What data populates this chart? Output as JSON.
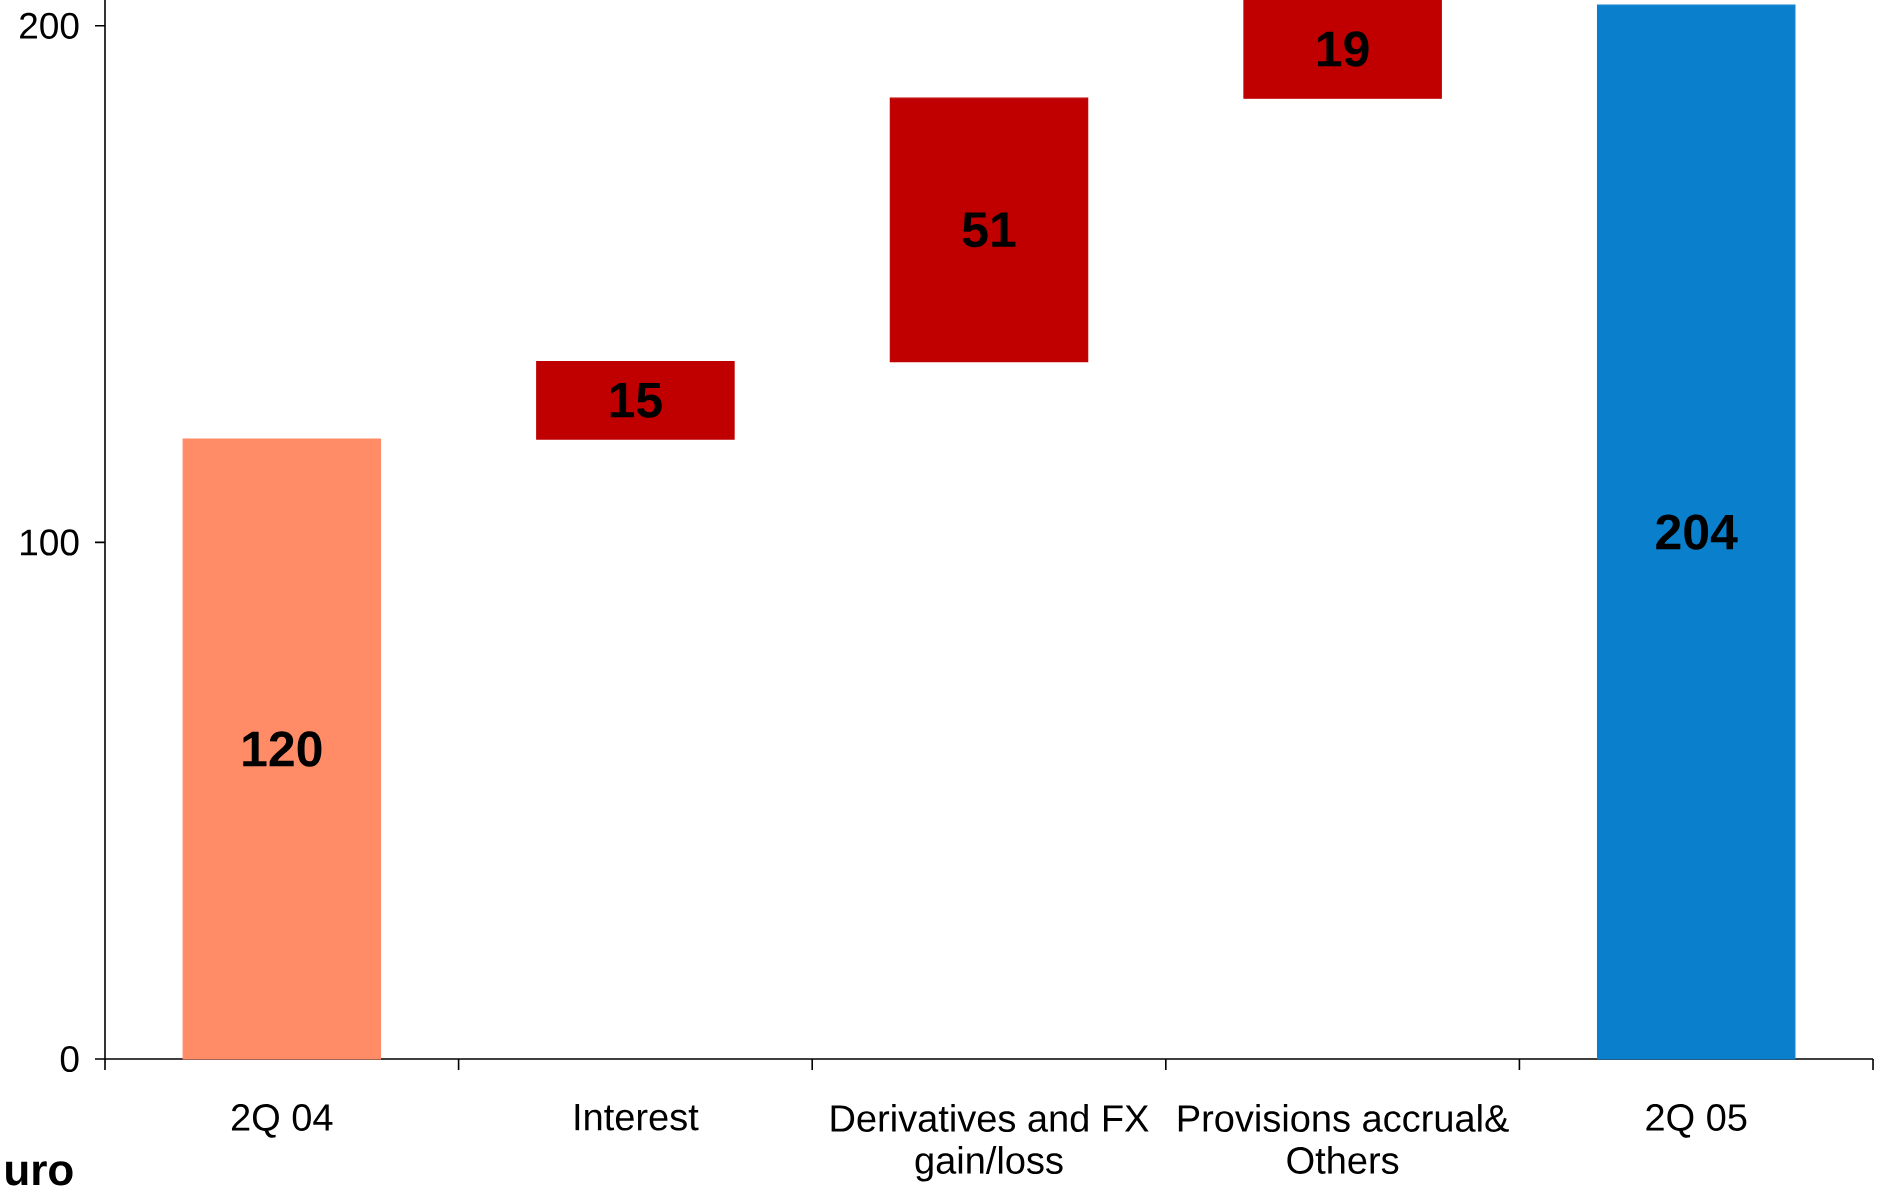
{
  "chart_data": {
    "type": "bar",
    "categories": [
      "2Q 04",
      "Interest",
      "Derivatives and FX gain/loss",
      "Provisions accrual& Others",
      "2Q 05"
    ],
    "values": [
      120,
      15,
      51,
      19,
      204
    ],
    "base": [
      0,
      120,
      135,
      186,
      0
    ],
    "colors": [
      "#ff8c66",
      "#c00000",
      "#c00000",
      "#c00000",
      "#0a7fcc"
    ],
    "ylim": [
      0,
      205
    ],
    "yticks": [
      0,
      100,
      200
    ],
    "data_labels": true,
    "annotations": [
      "uro"
    ]
  }
}
